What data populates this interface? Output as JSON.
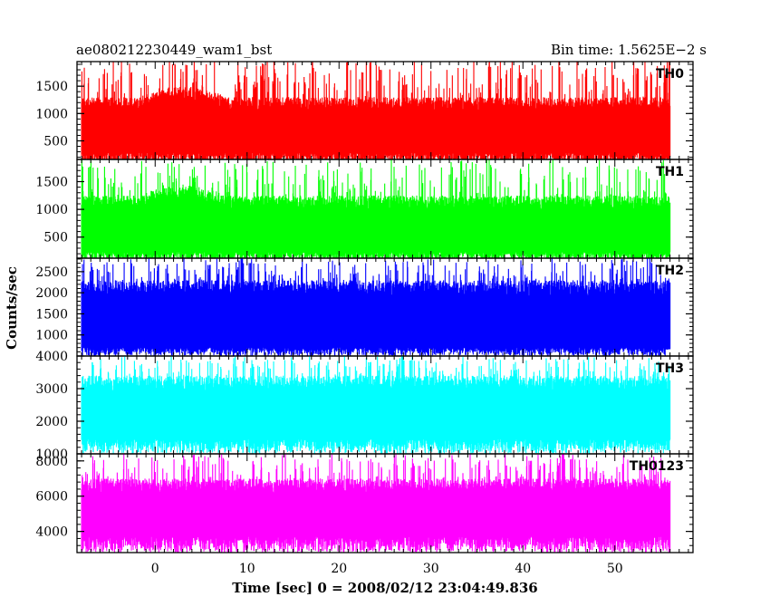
{
  "chart_data": {
    "type": "line",
    "title_left": "ae080212230449_wam1_bst",
    "title_right": "Bin time: 1.5625E−2 s",
    "xlabel": "Time [sec] 0 = 2008/02/12 23:04:49.836",
    "ylabel": "Counts/sec",
    "xlim": [
      -8.5,
      58.5
    ],
    "x_data_range": [
      -8,
      56
    ],
    "x_ticks": [
      0,
      10,
      20,
      30,
      40,
      50
    ],
    "grid": false,
    "panels": [
      {
        "name": "TH0",
        "color": "#ff0000",
        "ylim": [
          160,
          1950
        ],
        "y_ticks": [
          500,
          1000,
          1500
        ],
        "typical_low": 280,
        "typical_high": 1300,
        "min": 60,
        "max": 2000
      },
      {
        "name": "TH1",
        "color": "#00ff00",
        "ylim": [
          120,
          1900
        ],
        "y_ticks": [
          500,
          1000,
          1500
        ],
        "typical_low": 230,
        "typical_high": 1250,
        "min": 60,
        "max": 1900
      },
      {
        "name": "TH2",
        "color": "#0000ff",
        "ylim": [
          500,
          2820
        ],
        "y_ticks": [
          1000,
          1500,
          2000,
          2500
        ],
        "typical_low": 700,
        "typical_high": 2300,
        "min": 500,
        "max": 2820
      },
      {
        "name": "TH3",
        "color": "#00ffff",
        "ylim": [
          1000,
          4000
        ],
        "y_ticks": [
          1000,
          2000,
          3000,
          4000
        ],
        "typical_low": 1450,
        "typical_high": 3400,
        "min": 1000,
        "max": 4000
      },
      {
        "name": "TH0123",
        "color": "#ff00ff",
        "ylim": [
          2800,
          8400
        ],
        "y_ticks": [
          4000,
          6000,
          8000
        ],
        "typical_low": 3700,
        "typical_high": 7000,
        "min": 2800,
        "max": 8400
      }
    ]
  }
}
